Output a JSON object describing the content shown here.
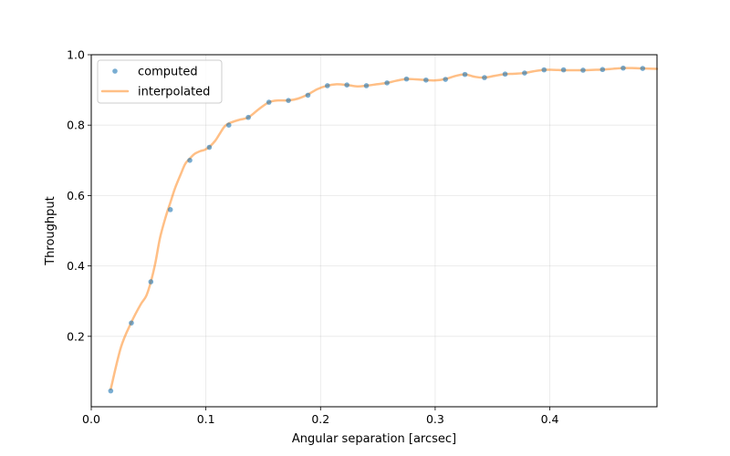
{
  "chart_data": {
    "type": "line",
    "title": "",
    "xlabel": "Angular separation [arcsec]",
    "ylabel": "Throughput",
    "xlim": [
      0.0,
      0.4935
    ],
    "ylim": [
      0.0,
      1.0
    ],
    "grid": true,
    "legend_position": "top-left",
    "x_ticks": [
      0.0,
      0.1,
      0.2,
      0.3,
      0.4
    ],
    "x_tick_labels": [
      "0.0",
      "0.1",
      "0.2",
      "0.3",
      "0.4"
    ],
    "y_ticks": [
      0.2,
      0.4,
      0.6,
      0.8,
      1.0
    ],
    "y_tick_labels": [
      "0.2",
      "0.4",
      "0.6",
      "0.8",
      "1.0"
    ],
    "series": [
      {
        "name": "computed",
        "kind": "scatter",
        "color": "#1f77b4",
        "x": [
          0.017,
          0.035,
          0.052,
          0.069,
          0.086,
          0.103,
          0.12,
          0.137,
          0.155,
          0.172,
          0.189,
          0.206,
          0.223,
          0.24,
          0.258,
          0.275,
          0.292,
          0.309,
          0.326,
          0.343,
          0.361,
          0.378,
          0.395,
          0.412,
          0.429,
          0.446,
          0.464,
          0.481
        ],
        "values": [
          0.045,
          0.238,
          0.355,
          0.56,
          0.7,
          0.737,
          0.8,
          0.822,
          0.865,
          0.87,
          0.885,
          0.912,
          0.914,
          0.912,
          0.92,
          0.931,
          0.928,
          0.93,
          0.944,
          0.935,
          0.945,
          0.948,
          0.957,
          0.957,
          0.956,
          0.958,
          0.962,
          0.961
        ]
      },
      {
        "name": "interpolated",
        "kind": "line",
        "color": "#ff7f0e",
        "x": [
          0.017,
          0.026,
          0.035,
          0.043,
          0.048,
          0.052,
          0.056,
          0.06,
          0.065,
          0.069,
          0.073,
          0.078,
          0.082,
          0.086,
          0.09,
          0.095,
          0.099,
          0.103,
          0.108,
          0.112,
          0.116,
          0.12,
          0.129,
          0.137,
          0.146,
          0.155,
          0.163,
          0.172,
          0.18,
          0.189,
          0.197,
          0.206,
          0.214,
          0.223,
          0.232,
          0.24,
          0.249,
          0.258,
          0.266,
          0.275,
          0.283,
          0.292,
          0.3,
          0.309,
          0.318,
          0.326,
          0.335,
          0.343,
          0.352,
          0.361,
          0.369,
          0.378,
          0.386,
          0.395,
          0.403,
          0.412,
          0.421,
          0.429,
          0.438,
          0.446,
          0.455,
          0.464,
          0.472,
          0.481,
          0.4935
        ],
        "values": [
          0.05,
          0.17,
          0.24,
          0.29,
          0.315,
          0.355,
          0.41,
          0.48,
          0.54,
          0.58,
          0.62,
          0.66,
          0.69,
          0.705,
          0.718,
          0.726,
          0.73,
          0.738,
          0.755,
          0.775,
          0.795,
          0.805,
          0.815,
          0.822,
          0.845,
          0.865,
          0.87,
          0.87,
          0.875,
          0.887,
          0.902,
          0.912,
          0.916,
          0.914,
          0.91,
          0.912,
          0.916,
          0.92,
          0.926,
          0.931,
          0.93,
          0.928,
          0.927,
          0.931,
          0.94,
          0.944,
          0.937,
          0.935,
          0.94,
          0.945,
          0.946,
          0.948,
          0.953,
          0.957,
          0.957,
          0.956,
          0.956,
          0.956,
          0.957,
          0.958,
          0.96,
          0.962,
          0.962,
          0.961,
          0.96
        ]
      }
    ]
  }
}
